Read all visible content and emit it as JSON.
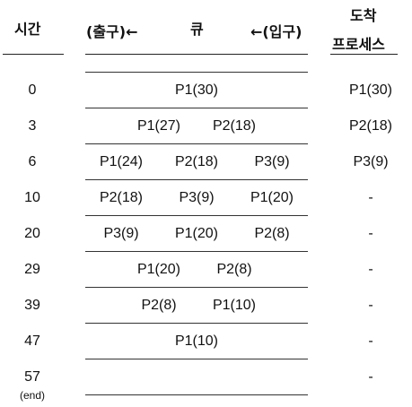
{
  "headers": {
    "time": "시간",
    "exit": "(출구)←",
    "queue": "큐",
    "entry": "←(입구)",
    "arrival_line1": "도착",
    "arrival_line2": "프로세스"
  },
  "rows": [
    {
      "time": "0",
      "queue": [
        "P1(30)"
      ],
      "arrival": "P1(30)"
    },
    {
      "time": "3",
      "queue": [
        "P1(27)",
        "P2(18)"
      ],
      "arrival": "P2(18)"
    },
    {
      "time": "6",
      "queue": [
        "P1(24)",
        "P2(18)",
        "P3(9)"
      ],
      "arrival": "P3(9)"
    },
    {
      "time": "10",
      "queue": [
        "P2(18)",
        "P3(9)",
        "P1(20)"
      ],
      "arrival": "-"
    },
    {
      "time": "20",
      "queue": [
        "P3(9)",
        "P1(20)",
        "P2(8)"
      ],
      "arrival": "-"
    },
    {
      "time": "29",
      "queue": [
        "P1(20)",
        "P2(8)"
      ],
      "arrival": "-"
    },
    {
      "time": "39",
      "queue": [
        "P2(8)",
        "P1(10)"
      ],
      "arrival": "-"
    },
    {
      "time": "47",
      "queue": [
        "P1(10)"
      ],
      "arrival": "-"
    },
    {
      "time": "57",
      "queue": [],
      "arrival": "-"
    }
  ],
  "end_note": "(end)"
}
